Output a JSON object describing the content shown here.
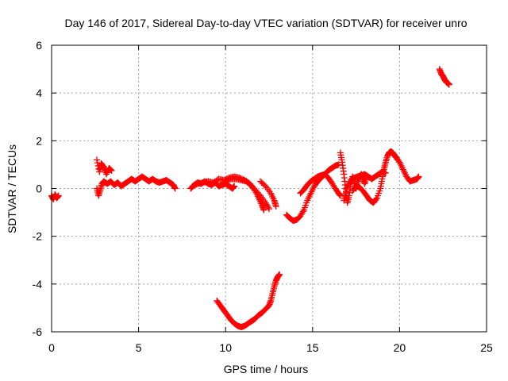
{
  "chart_data": {
    "type": "scatter",
    "title": "Day 146 of 2017, Sidereal Day-to-day VTEC variation (SDTVAR) for receiver unro",
    "xlabel": "GPS time / hours",
    "ylabel": "SDTVAR / TECUs",
    "xlim": [
      0,
      25
    ],
    "ylim": [
      -6,
      6
    ],
    "grid": true,
    "marker": "+",
    "x_ticks": [
      {
        "value": 0,
        "label": "0"
      },
      {
        "value": 5,
        "label": "5"
      },
      {
        "value": 10,
        "label": "10"
      },
      {
        "value": 15,
        "label": "15"
      },
      {
        "value": 20,
        "label": "20"
      },
      {
        "value": 25,
        "label": "25"
      }
    ],
    "y_ticks": [
      {
        "value": -6,
        "label": "-6"
      },
      {
        "value": -4,
        "label": "-4"
      },
      {
        "value": -2,
        "label": "-2"
      },
      {
        "value": 0,
        "label": "0"
      },
      {
        "value": 2,
        "label": "2"
      },
      {
        "value": 4,
        "label": "4"
      },
      {
        "value": 6,
        "label": "6"
      }
    ],
    "series": [
      {
        "name": "SDTVAR",
        "color": "#ff0000",
        "tracks": [
          [
            [
              0.0,
              -0.3
            ],
            [
              0.1,
              -0.45
            ],
            [
              0.2,
              -0.25
            ],
            [
              0.3,
              -0.4
            ],
            [
              0.4,
              -0.3
            ]
          ],
          [
            [
              2.6,
              1.2
            ],
            [
              2.75,
              0.7
            ],
            [
              2.85,
              1.05
            ],
            [
              3.0,
              0.9
            ],
            [
              3.15,
              0.6
            ],
            [
              3.3,
              0.85
            ],
            [
              3.45,
              0.75
            ]
          ],
          [
            [
              2.6,
              0.0
            ],
            [
              2.7,
              -0.3
            ],
            [
              2.8,
              -0.05
            ],
            [
              2.9,
              0.2
            ],
            [
              3.0,
              0.3
            ],
            [
              3.2,
              0.2
            ],
            [
              3.4,
              0.3
            ],
            [
              3.6,
              0.15
            ],
            [
              3.8,
              0.25
            ],
            [
              4.0,
              0.1
            ],
            [
              4.2,
              0.2
            ],
            [
              4.4,
              0.3
            ],
            [
              4.6,
              0.4
            ],
            [
              4.8,
              0.3
            ],
            [
              5.0,
              0.4
            ],
            [
              5.2,
              0.5
            ],
            [
              5.4,
              0.4
            ],
            [
              5.6,
              0.3
            ],
            [
              5.8,
              0.4
            ],
            [
              6.0,
              0.3
            ],
            [
              6.2,
              0.25
            ],
            [
              6.4,
              0.3
            ],
            [
              6.6,
              0.35
            ],
            [
              6.8,
              0.25
            ],
            [
              7.0,
              0.15
            ],
            [
              7.1,
              0.0
            ]
          ],
          [
            [
              8.0,
              0.0
            ],
            [
              8.2,
              0.15
            ],
            [
              8.4,
              0.25
            ],
            [
              8.6,
              0.2
            ],
            [
              8.8,
              0.3
            ],
            [
              9.0,
              0.2
            ],
            [
              9.2,
              0.15
            ],
            [
              9.4,
              0.25
            ],
            [
              9.6,
              0.1
            ],
            [
              9.8,
              0.15
            ],
            [
              10.0,
              0.2
            ],
            [
              10.2,
              0.1
            ],
            [
              10.4,
              0.0
            ],
            [
              10.5,
              0.1
            ]
          ],
          [
            [
              8.1,
              0.1
            ],
            [
              8.4,
              0.2
            ],
            [
              8.7,
              0.25
            ],
            [
              9.0,
              0.3
            ],
            [
              9.3,
              0.25
            ],
            [
              9.6,
              0.4
            ],
            [
              9.9,
              0.35
            ],
            [
              10.2,
              0.45
            ],
            [
              10.5,
              0.5
            ],
            [
              10.8,
              0.45
            ],
            [
              11.1,
              0.35
            ],
            [
              11.4,
              0.2
            ],
            [
              11.7,
              -0.05
            ],
            [
              12.0,
              -0.3
            ],
            [
              12.3,
              -0.6
            ],
            [
              12.5,
              -0.85
            ]
          ],
          [
            [
              10.0,
              0.3
            ],
            [
              10.3,
              0.4
            ],
            [
              10.6,
              0.4
            ],
            [
              10.9,
              0.35
            ],
            [
              11.2,
              0.3
            ],
            [
              11.5,
              0.1
            ],
            [
              11.7,
              -0.1
            ],
            [
              11.9,
              -0.4
            ],
            [
              12.1,
              -0.7
            ],
            [
              12.2,
              -0.9
            ]
          ],
          [
            [
              12.0,
              0.3
            ],
            [
              12.3,
              0.1
            ],
            [
              12.6,
              -0.2
            ],
            [
              12.8,
              -0.5
            ],
            [
              12.9,
              -0.75
            ]
          ],
          [
            [
              9.5,
              -4.7
            ],
            [
              9.7,
              -4.9
            ],
            [
              9.9,
              -5.1
            ],
            [
              10.1,
              -5.3
            ],
            [
              10.3,
              -5.5
            ],
            [
              10.5,
              -5.65
            ],
            [
              10.7,
              -5.75
            ],
            [
              10.9,
              -5.8
            ],
            [
              11.1,
              -5.75
            ],
            [
              11.3,
              -5.65
            ],
            [
              11.5,
              -5.55
            ],
            [
              11.7,
              -5.45
            ],
            [
              11.9,
              -5.3
            ],
            [
              12.1,
              -5.2
            ],
            [
              12.3,
              -5.05
            ],
            [
              12.5,
              -4.9
            ],
            [
              12.6,
              -4.7
            ],
            [
              12.7,
              -4.4
            ],
            [
              12.8,
              -4.1
            ],
            [
              12.9,
              -3.85
            ],
            [
              13.0,
              -3.7
            ],
            [
              13.1,
              -3.6
            ]
          ],
          [
            [
              13.5,
              -1.1
            ],
            [
              13.7,
              -1.25
            ],
            [
              13.9,
              -1.35
            ],
            [
              14.1,
              -1.3
            ],
            [
              14.3,
              -1.15
            ],
            [
              14.5,
              -0.9
            ],
            [
              14.7,
              -0.5
            ],
            [
              14.9,
              -0.2
            ],
            [
              15.1,
              0.1
            ],
            [
              15.3,
              0.3
            ],
            [
              15.5,
              0.45
            ],
            [
              15.7,
              0.6
            ],
            [
              15.9,
              0.75
            ],
            [
              16.1,
              0.85
            ],
            [
              16.3,
              0.95
            ],
            [
              16.5,
              1.0
            ]
          ],
          [
            [
              14.3,
              -0.2
            ],
            [
              14.5,
              -0.05
            ],
            [
              14.7,
              0.15
            ],
            [
              14.9,
              0.3
            ],
            [
              15.1,
              0.4
            ],
            [
              15.3,
              0.5
            ],
            [
              15.5,
              0.55
            ],
            [
              15.7,
              0.6
            ],
            [
              15.9,
              0.45
            ],
            [
              16.1,
              0.25
            ],
            [
              16.3,
              0.0
            ],
            [
              16.5,
              -0.2
            ],
            [
              16.6,
              -0.3
            ]
          ],
          [
            [
              16.6,
              1.5
            ],
            [
              16.7,
              1.1
            ],
            [
              16.8,
              0.6
            ],
            [
              16.9,
              0.0
            ],
            [
              17.0,
              -0.6
            ],
            [
              17.1,
              -0.3
            ],
            [
              17.2,
              0.2
            ],
            [
              17.3,
              0.5
            ],
            [
              17.4,
              0.3
            ],
            [
              17.5,
              0.0
            ],
            [
              17.6,
              0.3
            ],
            [
              17.7,
              0.5
            ],
            [
              17.8,
              0.6
            ],
            [
              17.9,
              0.4
            ],
            [
              18.0,
              0.2
            ],
            [
              18.1,
              0.5
            ]
          ],
          [
            [
              16.8,
              -0.5
            ],
            [
              16.9,
              -0.2
            ],
            [
              17.0,
              0.1
            ],
            [
              17.2,
              0.35
            ],
            [
              17.4,
              0.45
            ],
            [
              17.6,
              0.5
            ],
            [
              17.8,
              0.55
            ],
            [
              18.0,
              0.6
            ],
            [
              18.2,
              0.5
            ],
            [
              18.4,
              0.4
            ],
            [
              18.6,
              0.5
            ],
            [
              18.8,
              0.6
            ],
            [
              19.0,
              0.7
            ],
            [
              19.2,
              0.65
            ]
          ],
          [
            [
              17.3,
              -0.1
            ],
            [
              17.5,
              0.1
            ],
            [
              17.7,
              0.05
            ],
            [
              17.9,
              -0.1
            ],
            [
              18.1,
              -0.3
            ],
            [
              18.3,
              -0.5
            ],
            [
              18.5,
              -0.6
            ],
            [
              18.7,
              -0.4
            ],
            [
              18.9,
              0.0
            ],
            [
              19.0,
              0.4
            ],
            [
              19.1,
              0.8
            ],
            [
              19.2,
              1.1
            ],
            [
              19.3,
              1.35
            ],
            [
              19.4,
              1.5
            ],
            [
              19.5,
              1.55
            ],
            [
              19.6,
              1.5
            ],
            [
              19.7,
              1.4
            ],
            [
              19.8,
              1.3
            ],
            [
              20.0,
              1.1
            ],
            [
              20.2,
              0.8
            ],
            [
              20.4,
              0.5
            ],
            [
              20.6,
              0.3
            ],
            [
              20.8,
              0.35
            ],
            [
              21.0,
              0.4
            ],
            [
              21.1,
              0.5
            ]
          ],
          [
            [
              22.3,
              5.0
            ],
            [
              22.4,
              4.8
            ],
            [
              22.5,
              4.7
            ],
            [
              22.6,
              4.55
            ],
            [
              22.7,
              4.45
            ],
            [
              22.8,
              4.4
            ],
            [
              22.85,
              4.35
            ]
          ]
        ]
      }
    ]
  }
}
